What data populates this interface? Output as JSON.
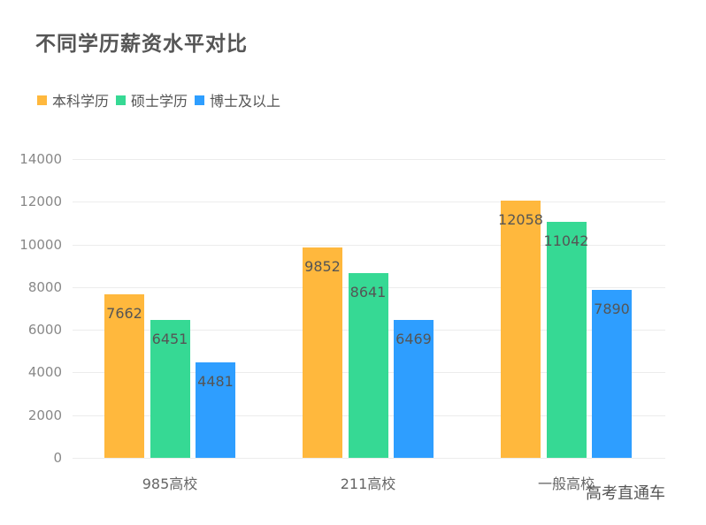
{
  "chart_data": {
    "type": "bar",
    "title": "不同学历薪资水平对比",
    "categories": [
      "985高校",
      "211高校",
      "一般高校"
    ],
    "series": [
      {
        "name": "本科学历",
        "color": "#FFB83D",
        "values": [
          7662,
          9852,
          12058
        ]
      },
      {
        "name": "硕士学历",
        "color": "#36D994",
        "values": [
          6451,
          8641,
          11042
        ]
      },
      {
        "name": "博士及以上",
        "color": "#2E9EFF",
        "values": [
          4481,
          6469,
          7890
        ]
      }
    ],
    "xlabel": "",
    "ylabel": "",
    "ylim": [
      0,
      14000
    ],
    "yticks": [
      "0",
      "2000",
      "4000",
      "6000",
      "8000",
      "10000",
      "12000",
      "14000"
    ],
    "grid": true,
    "legend_position": "top-left",
    "data_labels": true
  },
  "watermark": "高考直通车"
}
